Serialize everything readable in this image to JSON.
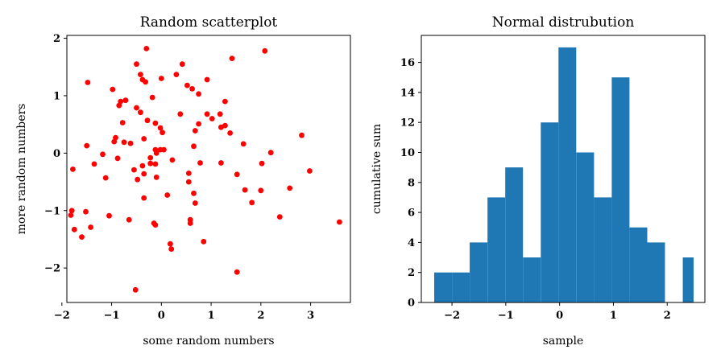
{
  "chart_data": [
    {
      "type": "scatter",
      "title": "Random scatterplot",
      "xlabel": "some random numbers",
      "ylabel": "more random numbers",
      "xlim": [
        -1.9,
        3.8
      ],
      "ylim": [
        -2.6,
        2.05
      ],
      "xticks": [
        -2,
        -1,
        0,
        1,
        2,
        3
      ],
      "yticks": [
        -2,
        -1,
        0,
        1,
        2
      ],
      "xtick_labels": [
        "−2",
        "−1",
        "0",
        "1",
        "2",
        "3"
      ],
      "ytick_labels": [
        "−2",
        "−1",
        "0",
        "1",
        "2"
      ],
      "marker_color": "#ff0000",
      "grid": false,
      "points": [
        [
          -0.3,
          1.82
        ],
        [
          2.08,
          1.78
        ],
        [
          1.42,
          1.65
        ],
        [
          -0.5,
          1.55
        ],
        [
          0.42,
          1.55
        ],
        [
          -1.48,
          1.23
        ],
        [
          -0.42,
          1.37
        ],
        [
          -0.38,
          1.28
        ],
        [
          -0.32,
          1.24
        ],
        [
          0.0,
          1.3
        ],
        [
          0.3,
          1.37
        ],
        [
          0.52,
          1.18
        ],
        [
          0.62,
          1.12
        ],
        [
          0.92,
          1.28
        ],
        [
          -0.98,
          1.11
        ],
        [
          -0.72,
          0.92
        ],
        [
          -0.82,
          0.9
        ],
        [
          -0.85,
          0.83
        ],
        [
          -0.5,
          0.79
        ],
        [
          -0.42,
          0.71
        ],
        [
          -0.18,
          0.97
        ],
        [
          0.75,
          1.03
        ],
        [
          1.28,
          0.9
        ],
        [
          0.38,
          0.68
        ],
        [
          0.92,
          0.68
        ],
        [
          1.02,
          0.6
        ],
        [
          1.18,
          0.68
        ],
        [
          -0.78,
          0.53
        ],
        [
          -0.28,
          0.57
        ],
        [
          -0.12,
          0.52
        ],
        [
          -0.02,
          0.44
        ],
        [
          0.02,
          0.36
        ],
        [
          0.68,
          0.39
        ],
        [
          0.75,
          0.51
        ],
        [
          1.2,
          0.45
        ],
        [
          1.28,
          0.48
        ],
        [
          1.38,
          0.35
        ],
        [
          -0.92,
          0.27
        ],
        [
          -0.75,
          0.19
        ],
        [
          -0.62,
          0.17
        ],
        [
          -0.95,
          0.2
        ],
        [
          -0.35,
          0.25
        ],
        [
          -1.5,
          0.13
        ],
        [
          1.65,
          0.16
        ],
        [
          -1.18,
          -0.02
        ],
        [
          -0.12,
          0.06
        ],
        [
          -0.1,
          0.0
        ],
        [
          -0.02,
          0.06
        ],
        [
          0.05,
          0.06
        ],
        [
          0.65,
          0.12
        ],
        [
          2.2,
          0.01
        ],
        [
          2.82,
          0.31
        ],
        [
          -0.88,
          -0.09
        ],
        [
          -0.55,
          -0.29
        ],
        [
          -0.48,
          -0.46
        ],
        [
          -0.38,
          -0.22
        ],
        [
          -0.35,
          -0.36
        ],
        [
          -0.22,
          -0.18
        ],
        [
          -0.12,
          -0.19
        ],
        [
          -0.22,
          -0.08
        ],
        [
          0.22,
          -0.12
        ],
        [
          0.55,
          -0.35
        ],
        [
          0.55,
          -0.5
        ],
        [
          0.78,
          -0.17
        ],
        [
          1.2,
          -0.17
        ],
        [
          1.52,
          -0.37
        ],
        [
          2.02,
          -0.18
        ],
        [
          2.98,
          -0.31
        ],
        [
          -1.35,
          -0.19
        ],
        [
          -1.78,
          -0.28
        ],
        [
          -1.12,
          -0.43
        ],
        [
          -0.1,
          -0.42
        ],
        [
          0.12,
          -0.73
        ],
        [
          0.65,
          -0.7
        ],
        [
          0.68,
          -0.87
        ],
        [
          -0.35,
          -0.78
        ],
        [
          1.68,
          -0.64
        ],
        [
          1.82,
          -0.86
        ],
        [
          2.0,
          -0.65
        ],
        [
          2.58,
          -0.61
        ],
        [
          -1.82,
          -1.08
        ],
        [
          -1.8,
          -1.0
        ],
        [
          -1.52,
          -1.02
        ],
        [
          -1.05,
          -1.09
        ],
        [
          -0.65,
          -1.16
        ],
        [
          -0.15,
          -1.22
        ],
        [
          -0.12,
          -1.25
        ],
        [
          0.58,
          -1.16
        ],
        [
          0.58,
          -1.22
        ],
        [
          2.38,
          -1.11
        ],
        [
          3.58,
          -1.2
        ],
        [
          -1.75,
          -1.33
        ],
        [
          -1.42,
          -1.29
        ],
        [
          -1.6,
          -1.46
        ],
        [
          0.18,
          -1.58
        ],
        [
          0.2,
          -1.67
        ],
        [
          0.85,
          -1.54
        ],
        [
          1.52,
          -2.07
        ],
        [
          -0.52,
          -2.38
        ]
      ]
    },
    {
      "type": "bar",
      "subtype": "histogram",
      "title": "Normal distrubution",
      "xlabel": "sample",
      "ylabel": "cumulative sum",
      "xlim": [
        -2.57,
        2.7
      ],
      "ylim": [
        0,
        17.8
      ],
      "xticks": [
        -2,
        -1,
        0,
        1,
        2
      ],
      "yticks": [
        0,
        2,
        4,
        6,
        8,
        10,
        12,
        14,
        16
      ],
      "xtick_labels": [
        "−2",
        "−1",
        "0",
        "1",
        "2"
      ],
      "ytick_labels": [
        "0",
        "2",
        "4",
        "6",
        "8",
        "10",
        "12",
        "14",
        "16"
      ],
      "bar_color": "#1f77b4",
      "grid": false,
      "bin_edges": [
        -2.33,
        -2.0,
        -1.67,
        -1.34,
        -1.01,
        -0.68,
        -0.35,
        -0.02,
        0.31,
        0.64,
        0.97,
        1.3,
        1.63,
        1.96,
        2.29,
        2.49
      ],
      "values": [
        2,
        2,
        4,
        7,
        9,
        3,
        12,
        17,
        10,
        7,
        15,
        5,
        4,
        0,
        3
      ]
    }
  ]
}
